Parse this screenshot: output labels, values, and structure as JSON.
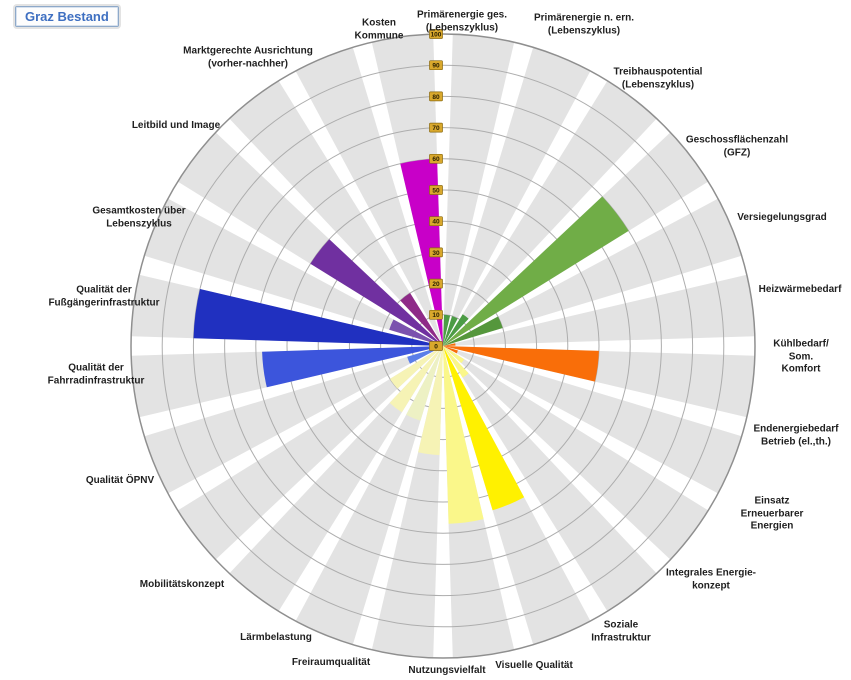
{
  "title_badge": "Graz Bestand",
  "chart_data": {
    "type": "bar",
    "subtype": "polar-rose-wheel",
    "title": "Graz Bestand",
    "units": "Bewertung 0-100",
    "axis": {
      "min": 0,
      "max": 100,
      "tick_step": 10,
      "tick_labels": [
        "0",
        "10",
        "20",
        "30",
        "40",
        "50",
        "60",
        "70",
        "80",
        "90",
        "100"
      ],
      "tick_box_color": "#d9a82c",
      "tick_box_border": "#8a6a10",
      "grid": "concentric rings every 10, radial axis vertical at top"
    },
    "legend_position": "none",
    "sector_count": 24,
    "sectors": [
      {
        "label": "Primärenergie ges.\n(Lebenszyklus)",
        "value": 10,
        "color": "#4c9c45"
      },
      {
        "label": "Primärenergie n. ern.\n(Lebenszyklus)",
        "value": 10,
        "color": "#4c9c45"
      },
      {
        "label": "Treibhauspotential\n(Lebenszyklus)",
        "value": 12,
        "color": "#4c9c45"
      },
      {
        "label": "Geschossflächenzahl\n(GFZ)",
        "value": 70,
        "color": "#70ad47"
      },
      {
        "label": "Versiegelungsgrad",
        "value": 20,
        "color": "#55973c"
      },
      {
        "label": "Heizwärmebedarf",
        "value": 4,
        "color": "#f96e09"
      },
      {
        "label": "Kühlbedarf/ Som.\nKomfort",
        "value": 50,
        "color": "#f96e09"
      },
      {
        "label": "Endenergiebedarf\nBetrieb (el.,th.)",
        "value": 5,
        "color": "#f96e09"
      },
      {
        "label": "Einsatz Erneuerbarer\nEnergien",
        "value": 8,
        "color": "#faf78a"
      },
      {
        "label": "Integrales Energie-\nkonzept",
        "value": 12,
        "color": "#faf78a"
      },
      {
        "label": "Soziale\nInfrastruktur",
        "value": 55,
        "color": "#fff100"
      },
      {
        "label": "Visuelle Qualität",
        "value": 57,
        "color": "#faf78a"
      },
      {
        "label": "Nutzungsvielfalt",
        "value": 35,
        "color": "#f6f3b5"
      },
      {
        "label": "Freiraumqualität",
        "value": 25,
        "color": "#edf1c4"
      },
      {
        "label": "Lärmbelastung",
        "value": 25,
        "color": "#f6f3b5"
      },
      {
        "label": "Mobilitätskonzept",
        "value": 20,
        "color": "#f6f3b5"
      },
      {
        "label": "Qualität ÖPNV",
        "value": 12,
        "color": "#5b7ee8"
      },
      {
        "label": "Qualität der\nFahrradinfrastruktur",
        "value": 58,
        "color": "#3c55dc"
      },
      {
        "label": "Qualität der\nFußgängerinfrastruktur",
        "value": 80,
        "color": "#2030c0"
      },
      {
        "label": "Gesamtkosten über\nLebenszyklus",
        "value": 18,
        "color": "#7b52ae"
      },
      {
        "label": "Leitbild und Image",
        "value": 50,
        "color": "#7030a0"
      },
      {
        "label": "Marktgerechte Ausrichtung\n(vorher-nachher)",
        "value": 20,
        "color": "#8e2a88"
      },
      {
        "label": "",
        "value": 0,
        "color": ""
      },
      {
        "label": "Kosten\nKommune",
        "value": 60,
        "color": "#c800c8"
      }
    ],
    "style_colors": {
      "sector_background": "#e3e3e3",
      "sector_gap": "#ffffff",
      "ring_line": "#adadad",
      "outer_ring_line": "#8f8f8f",
      "label_text": "#1f1f1f",
      "badge_text": "#3e6fc1"
    }
  }
}
